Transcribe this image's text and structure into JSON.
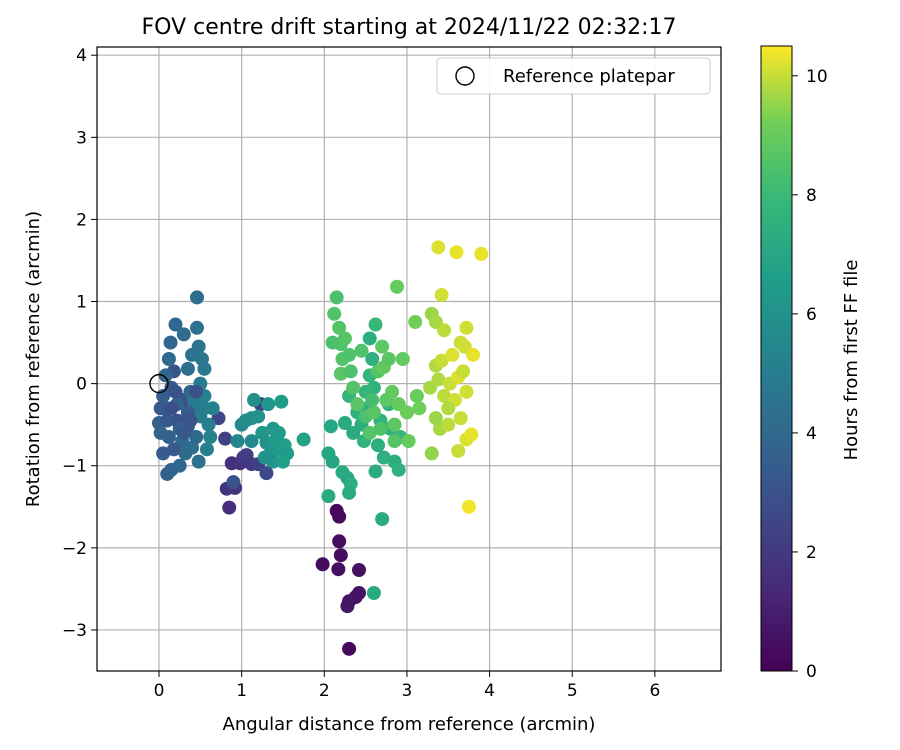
{
  "chart_data": {
    "type": "scatter",
    "title": "FOV centre drift starting at 2024/11/22 02:32:17",
    "xlabel": "Angular distance from reference (arcmin)",
    "ylabel": "Rotation from reference (arcmin)",
    "xlim": [
      -0.75,
      6.8
    ],
    "ylim": [
      -3.5,
      4.1
    ],
    "xticks": [
      0,
      1,
      2,
      3,
      4,
      5,
      6
    ],
    "yticks": [
      -3,
      -2,
      -1,
      0,
      1,
      2,
      3,
      4
    ],
    "grid": true,
    "legend": {
      "position": "top-right",
      "entries": [
        "Reference platepar"
      ]
    },
    "reference_point": {
      "x": 0,
      "y": 0,
      "marker": "open-circle"
    },
    "colorbar": {
      "label": "Hours from first FF file",
      "range": [
        0,
        10.5
      ],
      "ticks": [
        0,
        2,
        4,
        6,
        8,
        10
      ],
      "colormap": "viridis"
    },
    "points": [
      {
        "x": 2.15,
        "y": -1.55,
        "c": 0.2
      },
      {
        "x": 2.18,
        "y": -1.62,
        "c": 0.3
      },
      {
        "x": 1.98,
        "y": -2.2,
        "c": 0.3
      },
      {
        "x": 2.18,
        "y": -1.92,
        "c": 0.4
      },
      {
        "x": 2.2,
        "y": -2.09,
        "c": 0.4
      },
      {
        "x": 2.17,
        "y": -2.26,
        "c": 0.5
      },
      {
        "x": 2.42,
        "y": -2.27,
        "c": 0.5
      },
      {
        "x": 2.42,
        "y": -2.55,
        "c": 0.6
      },
      {
        "x": 2.38,
        "y": -2.6,
        "c": 0.6
      },
      {
        "x": 2.3,
        "y": -2.65,
        "c": 0.7
      },
      {
        "x": 2.28,
        "y": -2.71,
        "c": 0.7
      },
      {
        "x": 2.3,
        "y": -3.23,
        "c": 0.3
      },
      {
        "x": 0.85,
        "y": -1.51,
        "c": 1.5
      },
      {
        "x": 0.82,
        "y": -1.28,
        "c": 1.7
      },
      {
        "x": 0.92,
        "y": -1.27,
        "c": 1.8
      },
      {
        "x": 0.88,
        "y": -0.97,
        "c": 1.6
      },
      {
        "x": 0.98,
        "y": -0.97,
        "c": 1.8
      },
      {
        "x": 1.02,
        "y": -0.9,
        "c": 2.0
      },
      {
        "x": 1.06,
        "y": -0.87,
        "c": 2.2
      },
      {
        "x": 1.12,
        "y": -0.98,
        "c": 2.0
      },
      {
        "x": 1.2,
        "y": -0.98,
        "c": 2.3
      },
      {
        "x": 1.23,
        "y": -0.25,
        "c": 2.2
      },
      {
        "x": 0.8,
        "y": -0.67,
        "c": 2.3
      },
      {
        "x": 1.3,
        "y": -1.09,
        "c": 2.6
      },
      {
        "x": 0.72,
        "y": -0.42,
        "c": 2.6
      },
      {
        "x": 0.9,
        "y": -1.2,
        "c": 3.0
      },
      {
        "x": 0.42,
        "y": -0.35,
        "c": 2.8
      },
      {
        "x": 0.3,
        "y": -0.2,
        "c": 2.9
      },
      {
        "x": 0.22,
        "y": -0.45,
        "c": 3.0
      },
      {
        "x": 0.35,
        "y": -0.52,
        "c": 3.2
      },
      {
        "x": 0.18,
        "y": 0.15,
        "c": 3.1
      },
      {
        "x": 0.15,
        "y": -0.05,
        "c": 3.3
      },
      {
        "x": 0.08,
        "y": -0.3,
        "c": 3.5
      },
      {
        "x": 0.12,
        "y": -0.65,
        "c": 3.6
      },
      {
        "x": 0.05,
        "y": -0.85,
        "c": 3.4
      },
      {
        "x": 0.02,
        "y": -0.6,
        "c": 3.8
      },
      {
        "x": 0.1,
        "y": -1.1,
        "c": 3.6
      },
      {
        "x": 0.15,
        "y": -1.05,
        "c": 3.8
      },
      {
        "x": 0.25,
        "y": -1.0,
        "c": 3.9
      },
      {
        "x": 0.28,
        "y": -0.7,
        "c": 4.0
      },
      {
        "x": 0.32,
        "y": -0.85,
        "c": 4.1
      },
      {
        "x": 0.38,
        "y": -0.1,
        "c": 3.9
      },
      {
        "x": 0.4,
        "y": -0.78,
        "c": 4.2
      },
      {
        "x": 0.45,
        "y": -0.65,
        "c": 4.0
      },
      {
        "x": 0.48,
        "y": -0.95,
        "c": 4.3
      },
      {
        "x": 0.3,
        "y": 0.6,
        "c": 4.1
      },
      {
        "x": 0.2,
        "y": 0.72,
        "c": 3.9
      },
      {
        "x": 0.46,
        "y": 1.05,
        "c": 4.2
      },
      {
        "x": 0.46,
        "y": 0.68,
        "c": 4.4
      },
      {
        "x": 0.48,
        "y": 0.45,
        "c": 4.6
      },
      {
        "x": 0.4,
        "y": 0.35,
        "c": 4.5
      },
      {
        "x": 0.35,
        "y": 0.18,
        "c": 4.3
      },
      {
        "x": 0.52,
        "y": 0.3,
        "c": 4.7
      },
      {
        "x": 0.55,
        "y": 0.18,
        "c": 4.8
      },
      {
        "x": 0.5,
        "y": 0.0,
        "c": 4.9
      },
      {
        "x": 0.42,
        "y": -0.2,
        "c": 4.6
      },
      {
        "x": 0.55,
        "y": -0.3,
        "c": 5.0
      },
      {
        "x": 0.6,
        "y": -0.5,
        "c": 5.1
      },
      {
        "x": 0.58,
        "y": -0.8,
        "c": 5.0
      },
      {
        "x": 0.65,
        "y": -0.3,
        "c": 5.2
      },
      {
        "x": 0.62,
        "y": -0.65,
        "c": 5.3
      },
      {
        "x": 0.55,
        "y": -0.15,
        "c": 5.2
      },
      {
        "x": 0.5,
        "y": -0.4,
        "c": 5.1
      },
      {
        "x": 0.45,
        "y": -0.25,
        "c": 4.9
      },
      {
        "x": 0.0,
        "y": -0.48,
        "c": 3.7
      },
      {
        "x": 0.05,
        "y": -0.15,
        "c": 3.6
      },
      {
        "x": 0.08,
        "y": 0.1,
        "c": 3.8
      },
      {
        "x": 0.12,
        "y": 0.3,
        "c": 4.0
      },
      {
        "x": 0.14,
        "y": 0.5,
        "c": 3.9
      },
      {
        "x": 0.22,
        "y": -0.25,
        "c": 3.7
      },
      {
        "x": 0.25,
        "y": -0.55,
        "c": 3.5
      },
      {
        "x": 0.18,
        "y": -0.8,
        "c": 3.3
      },
      {
        "x": 0.35,
        "y": -0.35,
        "c": 3.4
      },
      {
        "x": 0.3,
        "y": -0.6,
        "c": 3.2
      },
      {
        "x": 0.38,
        "y": -0.45,
        "c": 3.1
      },
      {
        "x": 0.45,
        "y": -0.1,
        "c": 3.0
      },
      {
        "x": 0.2,
        "y": -0.1,
        "c": 3.0
      },
      {
        "x": 0.1,
        "y": -0.45,
        "c": 3.2
      },
      {
        "x": 0.02,
        "y": -0.3,
        "c": 3.3
      },
      {
        "x": 0.15,
        "y": -0.3,
        "c": 2.9
      },
      {
        "x": 0.95,
        "y": -0.7,
        "c": 5.5
      },
      {
        "x": 1.0,
        "y": -0.5,
        "c": 5.6
      },
      {
        "x": 1.05,
        "y": -0.45,
        "c": 5.7
      },
      {
        "x": 1.12,
        "y": -0.42,
        "c": 5.8
      },
      {
        "x": 1.12,
        "y": -0.7,
        "c": 5.6
      },
      {
        "x": 1.15,
        "y": -0.2,
        "c": 5.9
      },
      {
        "x": 1.2,
        "y": -0.4,
        "c": 6.0
      },
      {
        "x": 1.25,
        "y": -0.6,
        "c": 6.1
      },
      {
        "x": 1.3,
        "y": -0.72,
        "c": 6.0
      },
      {
        "x": 1.32,
        "y": -0.25,
        "c": 6.2
      },
      {
        "x": 1.35,
        "y": -0.85,
        "c": 5.9
      },
      {
        "x": 1.38,
        "y": -0.95,
        "c": 6.1
      },
      {
        "x": 1.42,
        "y": -0.8,
        "c": 6.3
      },
      {
        "x": 1.45,
        "y": -0.6,
        "c": 6.4
      },
      {
        "x": 1.48,
        "y": -0.22,
        "c": 6.5
      },
      {
        "x": 1.5,
        "y": -0.95,
        "c": 6.6
      },
      {
        "x": 1.52,
        "y": -0.75,
        "c": 6.7
      },
      {
        "x": 1.38,
        "y": -0.55,
        "c": 6.3
      },
      {
        "x": 1.28,
        "y": -0.9,
        "c": 6.0
      },
      {
        "x": 1.4,
        "y": -0.7,
        "c": 6.4
      },
      {
        "x": 1.75,
        "y": -0.68,
        "c": 6.8
      },
      {
        "x": 1.55,
        "y": -0.85,
        "c": 6.5
      },
      {
        "x": 2.08,
        "y": -0.52,
        "c": 7.0
      },
      {
        "x": 2.05,
        "y": -0.85,
        "c": 7.1
      },
      {
        "x": 2.05,
        "y": -1.37,
        "c": 7.2
      },
      {
        "x": 2.1,
        "y": -0.95,
        "c": 7.0
      },
      {
        "x": 2.22,
        "y": -1.08,
        "c": 7.3
      },
      {
        "x": 2.25,
        "y": -0.48,
        "c": 7.2
      },
      {
        "x": 2.28,
        "y": -1.15,
        "c": 7.1
      },
      {
        "x": 2.32,
        "y": -1.22,
        "c": 7.4
      },
      {
        "x": 2.35,
        "y": -0.6,
        "c": 7.3
      },
      {
        "x": 2.3,
        "y": -1.33,
        "c": 7.2
      },
      {
        "x": 2.4,
        "y": -0.35,
        "c": 7.5
      },
      {
        "x": 2.45,
        "y": -0.5,
        "c": 7.4
      },
      {
        "x": 2.48,
        "y": -0.7,
        "c": 7.6
      },
      {
        "x": 2.52,
        "y": -0.3,
        "c": 7.5
      },
      {
        "x": 2.55,
        "y": 0.55,
        "c": 7.4
      },
      {
        "x": 2.58,
        "y": 0.3,
        "c": 7.5
      },
      {
        "x": 2.6,
        "y": -0.05,
        "c": 7.6
      },
      {
        "x": 2.62,
        "y": -1.07,
        "c": 7.3
      },
      {
        "x": 2.65,
        "y": -0.75,
        "c": 7.4
      },
      {
        "x": 2.68,
        "y": -0.45,
        "c": 7.6
      },
      {
        "x": 2.7,
        "y": -1.65,
        "c": 7.3
      },
      {
        "x": 2.6,
        "y": -2.55,
        "c": 7.2
      },
      {
        "x": 2.72,
        "y": -0.9,
        "c": 7.5
      },
      {
        "x": 2.78,
        "y": -0.25,
        "c": 7.7
      },
      {
        "x": 2.8,
        "y": -0.55,
        "c": 7.6
      },
      {
        "x": 2.85,
        "y": -0.95,
        "c": 7.4
      },
      {
        "x": 2.9,
        "y": -1.05,
        "c": 7.5
      },
      {
        "x": 2.92,
        "y": -0.65,
        "c": 7.8
      },
      {
        "x": 2.62,
        "y": 0.72,
        "c": 7.9
      },
      {
        "x": 2.55,
        "y": 0.1,
        "c": 7.8
      },
      {
        "x": 2.3,
        "y": -0.15,
        "c": 7.7
      },
      {
        "x": 2.5,
        "y": -0.1,
        "c": 7.8
      },
      {
        "x": 2.15,
        "y": 1.05,
        "c": 8.4
      },
      {
        "x": 2.12,
        "y": 0.85,
        "c": 8.5
      },
      {
        "x": 2.18,
        "y": 0.68,
        "c": 8.6
      },
      {
        "x": 2.2,
        "y": 0.48,
        "c": 8.5
      },
      {
        "x": 2.22,
        "y": 0.3,
        "c": 8.6
      },
      {
        "x": 2.1,
        "y": 0.5,
        "c": 8.4
      },
      {
        "x": 2.2,
        "y": 0.12,
        "c": 8.7
      },
      {
        "x": 2.25,
        "y": 0.55,
        "c": 8.6
      },
      {
        "x": 2.3,
        "y": 0.35,
        "c": 8.5
      },
      {
        "x": 2.32,
        "y": 0.15,
        "c": 8.4
      },
      {
        "x": 2.35,
        "y": -0.05,
        "c": 8.6
      },
      {
        "x": 2.4,
        "y": -0.25,
        "c": 8.7
      },
      {
        "x": 2.45,
        "y": 0.4,
        "c": 8.5
      },
      {
        "x": 2.5,
        "y": -0.4,
        "c": 8.4
      },
      {
        "x": 2.55,
        "y": -0.6,
        "c": 8.6
      },
      {
        "x": 2.6,
        "y": -0.35,
        "c": 8.7
      },
      {
        "x": 2.65,
        "y": 0.15,
        "c": 8.6
      },
      {
        "x": 2.7,
        "y": 0.45,
        "c": 8.8
      },
      {
        "x": 2.72,
        "y": 0.2,
        "c": 8.9
      },
      {
        "x": 2.75,
        "y": -0.2,
        "c": 8.8
      },
      {
        "x": 2.78,
        "y": 0.3,
        "c": 8.7
      },
      {
        "x": 2.82,
        "y": -0.1,
        "c": 8.9
      },
      {
        "x": 2.85,
        "y": -0.7,
        "c": 8.6
      },
      {
        "x": 2.88,
        "y": 1.18,
        "c": 9.0
      },
      {
        "x": 2.9,
        "y": -0.25,
        "c": 9.0
      },
      {
        "x": 2.95,
        "y": 0.3,
        "c": 8.9
      },
      {
        "x": 3.0,
        "y": -0.35,
        "c": 9.1
      },
      {
        "x": 3.02,
        "y": -0.7,
        "c": 9.0
      },
      {
        "x": 3.1,
        "y": 0.75,
        "c": 9.2
      },
      {
        "x": 3.12,
        "y": -0.15,
        "c": 9.1
      },
      {
        "x": 3.15,
        "y": -0.3,
        "c": 9.2
      },
      {
        "x": 2.85,
        "y": -0.5,
        "c": 8.8
      },
      {
        "x": 2.68,
        "y": -0.55,
        "c": 8.5
      },
      {
        "x": 2.58,
        "y": -0.2,
        "c": 8.3
      },
      {
        "x": 3.3,
        "y": 0.85,
        "c": 9.6
      },
      {
        "x": 3.35,
        "y": 0.75,
        "c": 9.7
      },
      {
        "x": 3.38,
        "y": 1.66,
        "c": 10.2
      },
      {
        "x": 3.42,
        "y": 1.08,
        "c": 10.1
      },
      {
        "x": 3.6,
        "y": 1.6,
        "c": 10.3
      },
      {
        "x": 3.9,
        "y": 1.58,
        "c": 10.3
      },
      {
        "x": 3.45,
        "y": 0.65,
        "c": 9.9
      },
      {
        "x": 3.72,
        "y": 0.68,
        "c": 10.1
      },
      {
        "x": 3.35,
        "y": 0.22,
        "c": 9.8
      },
      {
        "x": 3.42,
        "y": 0.28,
        "c": 10.0
      },
      {
        "x": 3.55,
        "y": 0.35,
        "c": 10.2
      },
      {
        "x": 3.65,
        "y": 0.5,
        "c": 10.0
      },
      {
        "x": 3.7,
        "y": 0.45,
        "c": 10.1
      },
      {
        "x": 3.8,
        "y": 0.35,
        "c": 10.3
      },
      {
        "x": 3.28,
        "y": -0.05,
        "c": 9.7
      },
      {
        "x": 3.38,
        "y": 0.05,
        "c": 9.8
      },
      {
        "x": 3.45,
        "y": -0.15,
        "c": 9.9
      },
      {
        "x": 3.52,
        "y": 0.0,
        "c": 10.0
      },
      {
        "x": 3.58,
        "y": -0.2,
        "c": 10.1
      },
      {
        "x": 3.62,
        "y": 0.08,
        "c": 10.2
      },
      {
        "x": 3.68,
        "y": 0.15,
        "c": 10.0
      },
      {
        "x": 3.72,
        "y": -0.1,
        "c": 10.1
      },
      {
        "x": 3.35,
        "y": -0.42,
        "c": 9.6
      },
      {
        "x": 3.4,
        "y": -0.55,
        "c": 9.7
      },
      {
        "x": 3.5,
        "y": -0.5,
        "c": 9.9
      },
      {
        "x": 3.65,
        "y": -0.42,
        "c": 10.0
      },
      {
        "x": 3.72,
        "y": -0.68,
        "c": 10.2
      },
      {
        "x": 3.78,
        "y": -0.62,
        "c": 10.3
      },
      {
        "x": 3.3,
        "y": -0.85,
        "c": 9.5
      },
      {
        "x": 3.62,
        "y": -0.82,
        "c": 10.0
      },
      {
        "x": 3.75,
        "y": -1.5,
        "c": 10.4
      },
      {
        "x": 3.5,
        "y": -0.3,
        "c": 9.8
      }
    ]
  }
}
